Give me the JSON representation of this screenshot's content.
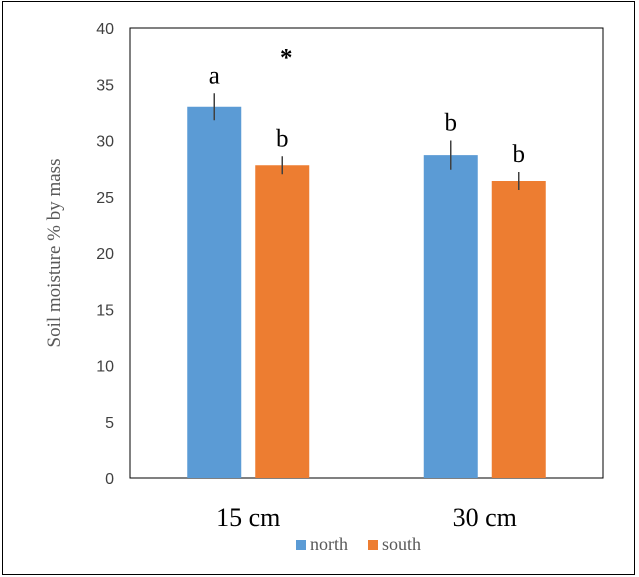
{
  "chart_data": {
    "type": "bar",
    "title": "",
    "xlabel": "",
    "ylabel": "Soil moisture % by mass",
    "categories": [
      "15 cm",
      "30 cm"
    ],
    "series": [
      {
        "name": "north",
        "values": [
          33.0,
          28.7
        ],
        "errors": [
          1.2,
          1.3
        ],
        "color": "#5b9bd5",
        "labels": [
          "a",
          "b"
        ]
      },
      {
        "name": "south",
        "values": [
          27.8,
          26.4
        ],
        "errors": [
          0.8,
          0.8
        ],
        "color": "#ed7d31",
        "labels": [
          "b",
          "b"
        ]
      }
    ],
    "ylim": [
      0,
      40
    ],
    "yticks": [
      0,
      5,
      10,
      15,
      20,
      25,
      30,
      35,
      40
    ],
    "grid": false,
    "legend": "bottom",
    "annotations": [
      {
        "text": "*",
        "category": "15 cm"
      }
    ]
  }
}
